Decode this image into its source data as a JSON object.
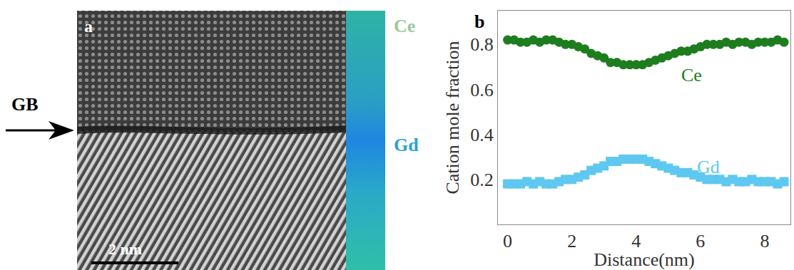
{
  "panel_a": {
    "label": "a",
    "gb_label": "GB",
    "scale_bar": "2 nm",
    "map_labels": [
      {
        "text": "Ce",
        "color": "#9cc79c"
      },
      {
        "text": "Gd",
        "color": "#2a9fd6"
      }
    ]
  },
  "chart_data": {
    "type": "scatter",
    "panel_label": "b",
    "xlabel": "Distance(nm)",
    "ylabel": "Cation mole fraction",
    "x": [
      0,
      0.2,
      0.4,
      0.6,
      0.8,
      1.0,
      1.2,
      1.4,
      1.6,
      1.8,
      2.0,
      2.2,
      2.4,
      2.6,
      2.8,
      3.0,
      3.2,
      3.4,
      3.6,
      3.8,
      4.0,
      4.2,
      4.4,
      4.6,
      4.8,
      5.0,
      5.2,
      5.4,
      5.6,
      5.8,
      6.0,
      6.2,
      6.4,
      6.6,
      6.8,
      7.0,
      7.2,
      7.4,
      7.6,
      7.8,
      8.0,
      8.2,
      8.4,
      8.6
    ],
    "series": [
      {
        "name": "Ce",
        "color": "#1e7d1e",
        "marker": "circle",
        "values": [
          0.82,
          0.82,
          0.81,
          0.81,
          0.82,
          0.81,
          0.82,
          0.82,
          0.81,
          0.8,
          0.8,
          0.79,
          0.78,
          0.76,
          0.75,
          0.74,
          0.72,
          0.72,
          0.71,
          0.71,
          0.71,
          0.71,
          0.72,
          0.73,
          0.74,
          0.75,
          0.76,
          0.77,
          0.77,
          0.78,
          0.79,
          0.8,
          0.8,
          0.8,
          0.81,
          0.8,
          0.81,
          0.81,
          0.8,
          0.81,
          0.81,
          0.81,
          0.82,
          0.81
        ]
      },
      {
        "name": "Gd",
        "color": "#5ec8f0",
        "marker": "square",
        "values": [
          0.18,
          0.18,
          0.18,
          0.19,
          0.18,
          0.19,
          0.18,
          0.18,
          0.19,
          0.2,
          0.2,
          0.21,
          0.22,
          0.24,
          0.25,
          0.26,
          0.28,
          0.28,
          0.29,
          0.29,
          0.29,
          0.29,
          0.28,
          0.27,
          0.26,
          0.25,
          0.24,
          0.23,
          0.23,
          0.22,
          0.21,
          0.2,
          0.2,
          0.2,
          0.19,
          0.2,
          0.19,
          0.19,
          0.2,
          0.19,
          0.19,
          0.19,
          0.18,
          0.19
        ]
      }
    ],
    "xlim": [
      -0.3,
      8.8
    ],
    "xticks": [
      0,
      2,
      4,
      6,
      8
    ],
    "ylim": [
      0.0,
      0.95
    ],
    "yticks": [
      0.2,
      0.4,
      0.6,
      0.8
    ],
    "grid": false
  }
}
